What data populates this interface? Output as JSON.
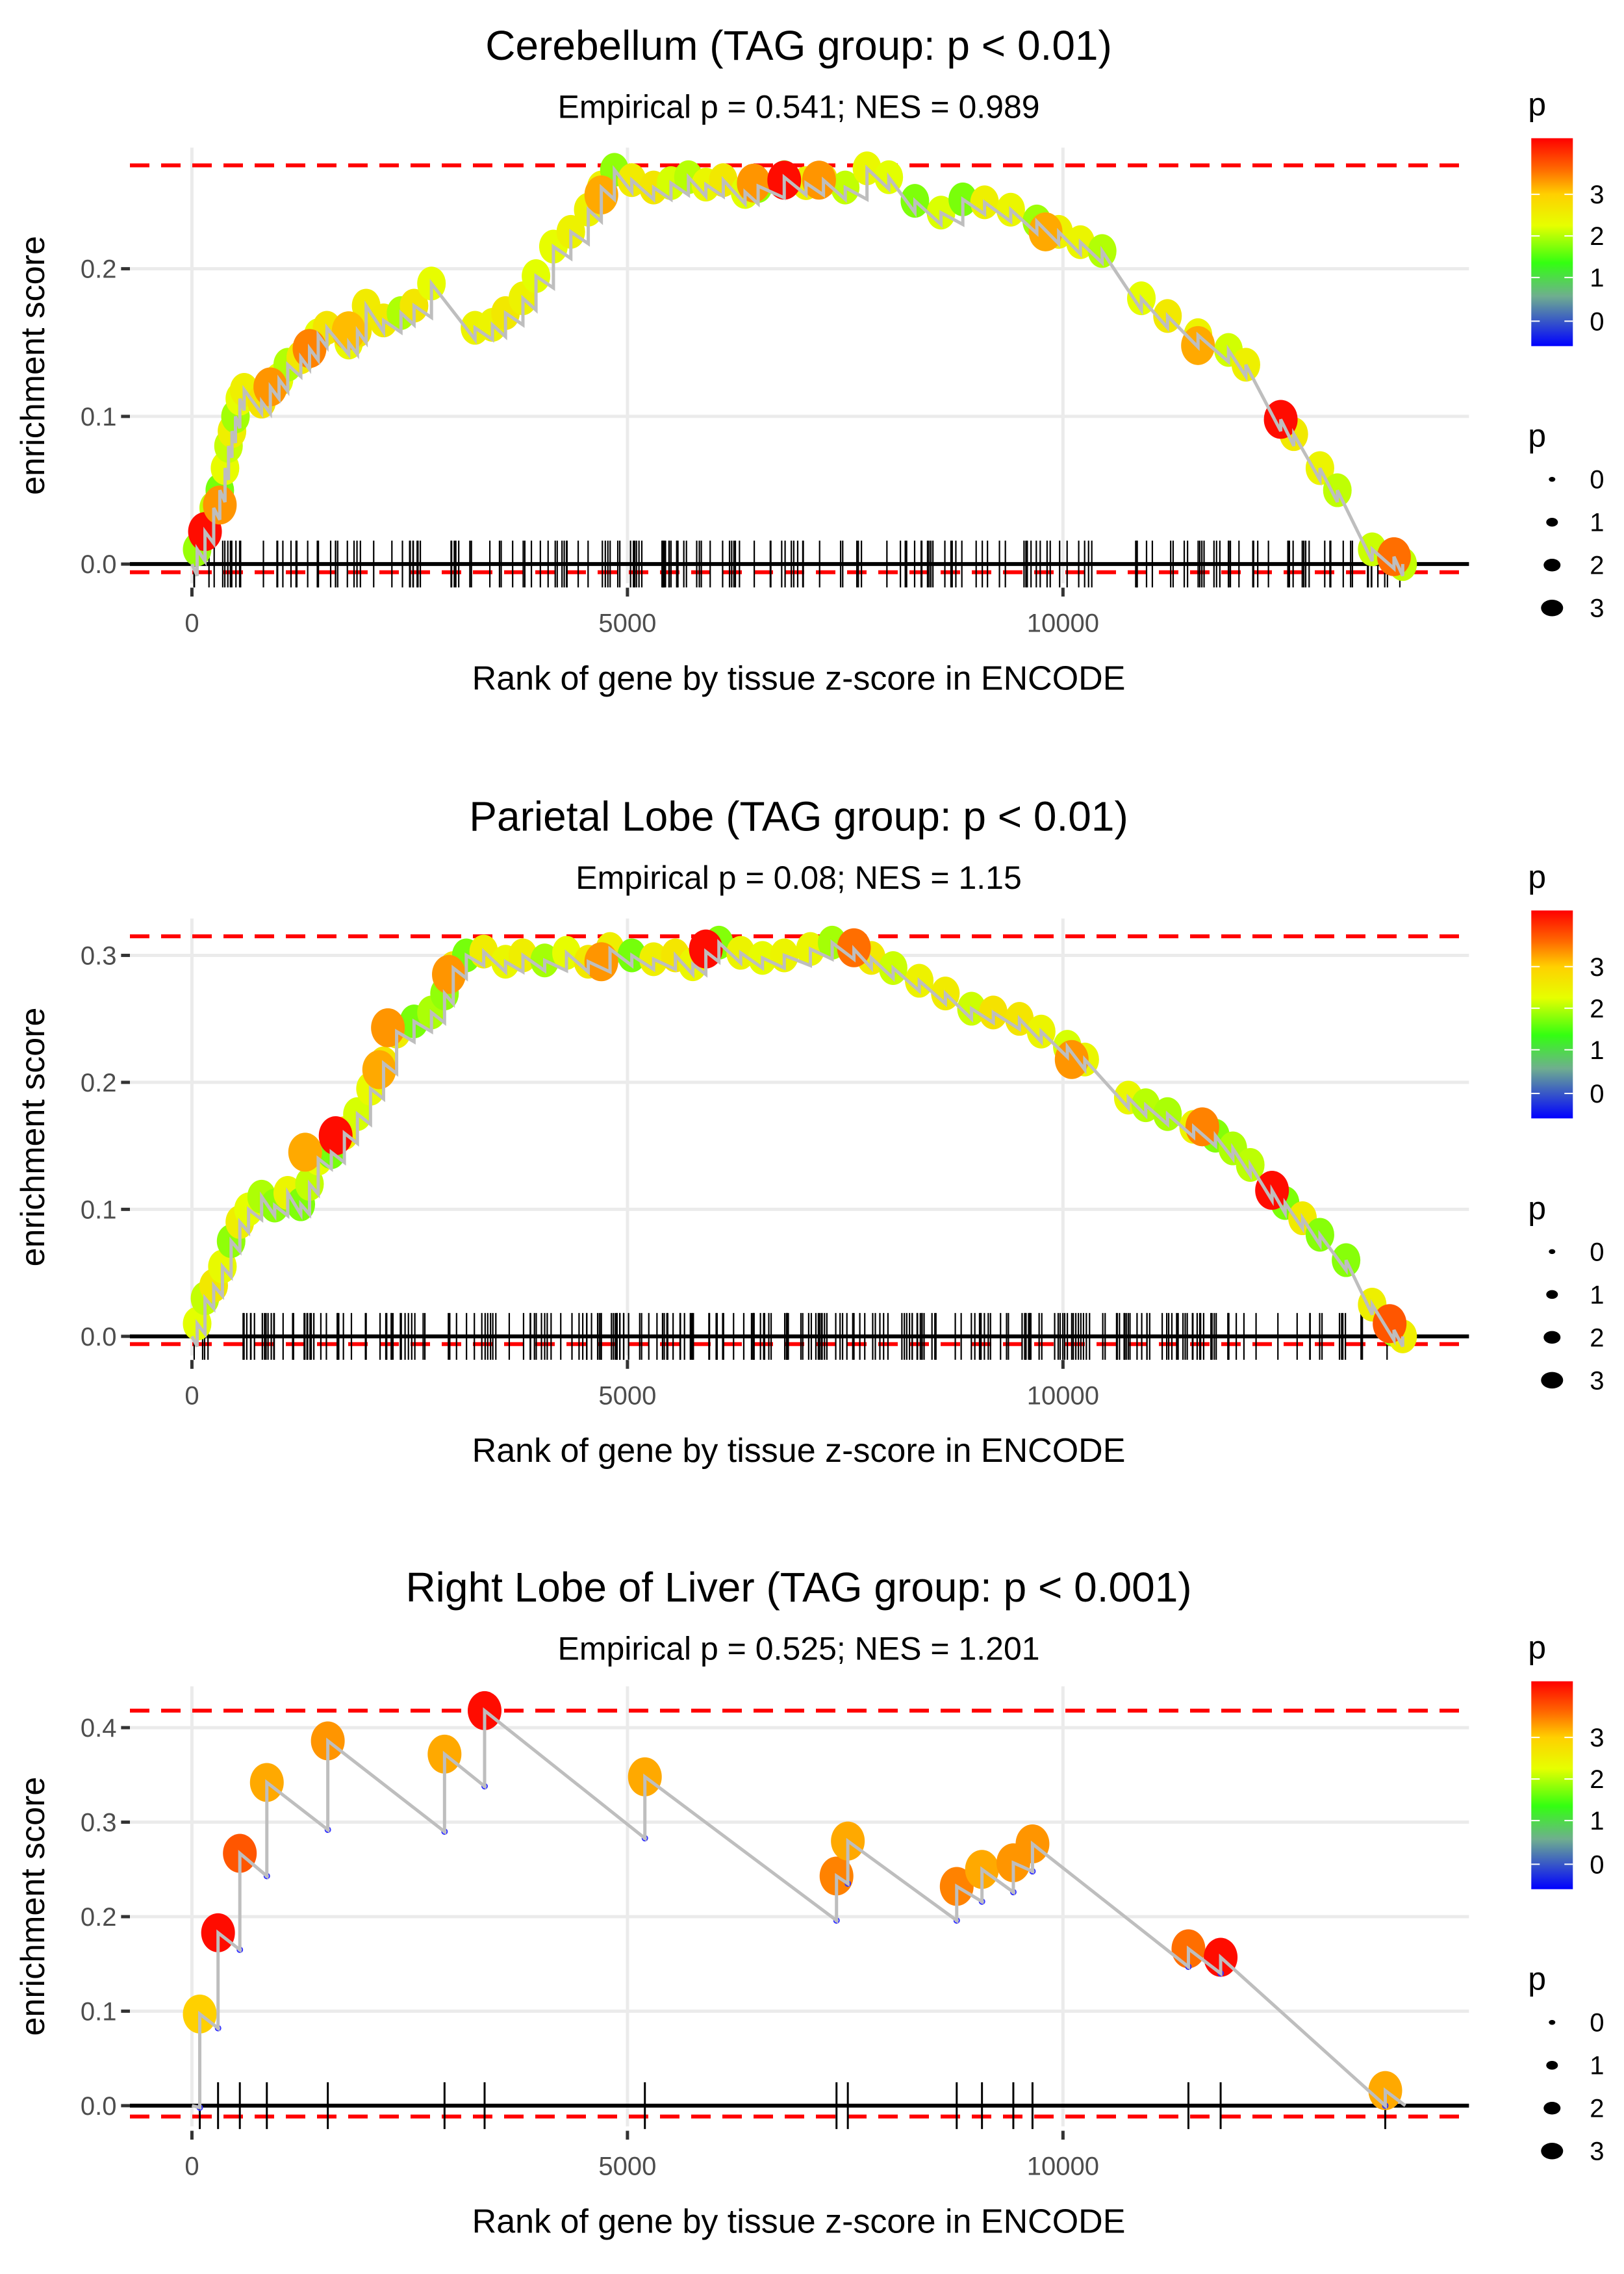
{
  "chart_data": [
    {
      "type": "line",
      "title": "Cerebellum (TAG group: p < 0.01)",
      "subtitle": "Empirical p = 0.541; NES = 0.989",
      "xlabel": "Rank of gene by tissue z-score in ENCODE",
      "ylabel": "enrichment score",
      "xlim": [
        -700,
        14800
      ],
      "ylim": [
        -0.005,
        0.28
      ],
      "x_ticks": [
        0,
        5000,
        10000
      ],
      "x_tick_labels": [
        "0",
        "5000",
        "10000"
      ],
      "y_ticks": [
        0.0,
        0.1,
        0.2
      ],
      "y_tick_labels": [
        "0.0",
        "0.1",
        "0.2"
      ],
      "max_es": 0.27,
      "min_es": -0.002,
      "grid": true,
      "series": [
        {
          "name": "running ES",
          "points": [
            [
              0,
              0.0
            ],
            [
              60,
              0.01
            ],
            [
              150,
              0.022
            ],
            [
              250,
              0.038
            ],
            [
              320,
              0.05
            ],
            [
              380,
              0.065
            ],
            [
              420,
              0.08
            ],
            [
              460,
              0.09
            ],
            [
              500,
              0.1
            ],
            [
              550,
              0.112
            ],
            [
              600,
              0.118
            ],
            [
              800,
              0.11
            ],
            [
              900,
              0.12
            ],
            [
              1000,
              0.125
            ],
            [
              1100,
              0.135
            ],
            [
              1250,
              0.14
            ],
            [
              1350,
              0.146
            ],
            [
              1450,
              0.155
            ],
            [
              1550,
              0.16
            ],
            [
              1800,
              0.15
            ],
            [
              1900,
              0.158
            ],
            [
              2000,
              0.175
            ],
            [
              2200,
              0.165
            ],
            [
              2400,
              0.17
            ],
            [
              2550,
              0.175
            ],
            [
              2750,
              0.19
            ],
            [
              3250,
              0.16
            ],
            [
              3450,
              0.162
            ],
            [
              3600,
              0.17
            ],
            [
              3800,
              0.18
            ],
            [
              3950,
              0.195
            ],
            [
              4150,
              0.215
            ],
            [
              4350,
              0.225
            ],
            [
              4550,
              0.24
            ],
            [
              4700,
              0.255
            ],
            [
              4850,
              0.267
            ],
            [
              5050,
              0.26
            ],
            [
              5300,
              0.255
            ],
            [
              5500,
              0.258
            ],
            [
              5700,
              0.262
            ],
            [
              5900,
              0.257
            ],
            [
              6100,
              0.26
            ],
            [
              6350,
              0.252
            ],
            [
              6500,
              0.256
            ],
            [
              6800,
              0.262
            ],
            [
              7050,
              0.258
            ],
            [
              7250,
              0.26
            ],
            [
              7500,
              0.255
            ],
            [
              7750,
              0.268
            ],
            [
              8000,
              0.262
            ],
            [
              8300,
              0.246
            ],
            [
              8600,
              0.238
            ],
            [
              8850,
              0.247
            ],
            [
              9100,
              0.245
            ],
            [
              9400,
              0.24
            ],
            [
              9700,
              0.232
            ],
            [
              9950,
              0.225
            ],
            [
              10200,
              0.218
            ],
            [
              10450,
              0.212
            ],
            [
              10900,
              0.18
            ],
            [
              11200,
              0.168
            ],
            [
              11550,
              0.155
            ],
            [
              11900,
              0.145
            ],
            [
              12100,
              0.135
            ],
            [
              12500,
              0.098
            ],
            [
              12650,
              0.088
            ],
            [
              12950,
              0.065
            ],
            [
              13150,
              0.05
            ],
            [
              13550,
              0.01
            ],
            [
              13800,
              0.005
            ],
            [
              13900,
              0.0
            ]
          ]
        }
      ],
      "highlight_points": [
        {
          "x": 150,
          "y": 0.022,
          "p": 3.9
        },
        {
          "x": 320,
          "y": 0.04,
          "p": 3.3
        },
        {
          "x": 900,
          "y": 0.12,
          "p": 3.3
        },
        {
          "x": 1350,
          "y": 0.146,
          "p": 3.4
        },
        {
          "x": 1800,
          "y": 0.158,
          "p": 3.1
        },
        {
          "x": 4700,
          "y": 0.25,
          "p": 3.2
        },
        {
          "x": 6450,
          "y": 0.258,
          "p": 3.3
        },
        {
          "x": 6800,
          "y": 0.26,
          "p": 3.9
        },
        {
          "x": 7200,
          "y": 0.26,
          "p": 3.3
        },
        {
          "x": 9800,
          "y": 0.225,
          "p": 3.2
        },
        {
          "x": 11550,
          "y": 0.148,
          "p": 3.2
        },
        {
          "x": 12500,
          "y": 0.098,
          "p": 3.9
        },
        {
          "x": 13800,
          "y": 0.005,
          "p": 3.5
        }
      ],
      "rug_density": 200
    },
    {
      "type": "line",
      "title": "Parietal Lobe (TAG group: p < 0.01)",
      "subtitle": "Empirical p = 0.08; NES = 1.15",
      "xlabel": "Rank of gene by tissue z-score in ENCODE",
      "ylabel": "enrichment score",
      "xlim": [
        -700,
        14800
      ],
      "ylim": [
        -0.005,
        0.32
      ],
      "x_ticks": [
        0,
        5000,
        10000
      ],
      "x_tick_labels": [
        "0",
        "5000",
        "10000"
      ],
      "y_ticks": [
        0.0,
        0.1,
        0.2,
        0.3
      ],
      "y_tick_labels": [
        "0.0",
        "0.1",
        "0.2",
        "0.3"
      ],
      "max_es": 0.315,
      "min_es": -0.002,
      "grid": true,
      "series": [
        {
          "name": "running ES",
          "points": [
            [
              0,
              0.0
            ],
            [
              60,
              0.01
            ],
            [
              150,
              0.03
            ],
            [
              250,
              0.04
            ],
            [
              350,
              0.055
            ],
            [
              450,
              0.075
            ],
            [
              550,
              0.09
            ],
            [
              650,
              0.1
            ],
            [
              800,
              0.11
            ],
            [
              950,
              0.103
            ],
            [
              1100,
              0.113
            ],
            [
              1250,
              0.104
            ],
            [
              1350,
              0.12
            ],
            [
              1450,
              0.14
            ],
            [
              1600,
              0.145
            ],
            [
              1750,
              0.16
            ],
            [
              1900,
              0.175
            ],
            [
              2050,
              0.195
            ],
            [
              2200,
              0.215
            ],
            [
              2350,
              0.24
            ],
            [
              2550,
              0.248
            ],
            [
              2750,
              0.255
            ],
            [
              2900,
              0.27
            ],
            [
              3000,
              0.29
            ],
            [
              3150,
              0.3
            ],
            [
              3350,
              0.303
            ],
            [
              3600,
              0.295
            ],
            [
              3800,
              0.3
            ],
            [
              4050,
              0.296
            ],
            [
              4300,
              0.302
            ],
            [
              4550,
              0.295
            ],
            [
              4800,
              0.305
            ],
            [
              5050,
              0.3
            ],
            [
              5300,
              0.297
            ],
            [
              5550,
              0.3
            ],
            [
              5750,
              0.293
            ],
            [
              5900,
              0.303
            ],
            [
              6050,
              0.31
            ],
            [
              6300,
              0.302
            ],
            [
              6550,
              0.298
            ],
            [
              6800,
              0.3
            ],
            [
              7100,
              0.305
            ],
            [
              7350,
              0.31
            ],
            [
              7600,
              0.305
            ],
            [
              7800,
              0.298
            ],
            [
              8050,
              0.29
            ],
            [
              8350,
              0.28
            ],
            [
              8650,
              0.27
            ],
            [
              8950,
              0.258
            ],
            [
              9200,
              0.255
            ],
            [
              9500,
              0.25
            ],
            [
              9750,
              0.24
            ],
            [
              10050,
              0.228
            ],
            [
              10250,
              0.218
            ],
            [
              10750,
              0.188
            ],
            [
              10950,
              0.182
            ],
            [
              11200,
              0.175
            ],
            [
              11500,
              0.165
            ],
            [
              11750,
              0.158
            ],
            [
              11950,
              0.148
            ],
            [
              12150,
              0.135
            ],
            [
              12400,
              0.115
            ],
            [
              12550,
              0.105
            ],
            [
              12750,
              0.093
            ],
            [
              12950,
              0.08
            ],
            [
              13250,
              0.06
            ],
            [
              13550,
              0.025
            ],
            [
              13800,
              0.005
            ],
            [
              13900,
              0.0
            ]
          ]
        }
      ],
      "highlight_points": [
        {
          "x": 1300,
          "y": 0.145,
          "p": 3.2
        },
        {
          "x": 1650,
          "y": 0.158,
          "p": 3.9
        },
        {
          "x": 2150,
          "y": 0.21,
          "p": 3.2
        },
        {
          "x": 2250,
          "y": 0.243,
          "p": 3.3
        },
        {
          "x": 2950,
          "y": 0.285,
          "p": 3.3
        },
        {
          "x": 4700,
          "y": 0.295,
          "p": 3.3
        },
        {
          "x": 5900,
          "y": 0.305,
          "p": 3.9
        },
        {
          "x": 7600,
          "y": 0.306,
          "p": 3.5
        },
        {
          "x": 10100,
          "y": 0.218,
          "p": 3.3
        },
        {
          "x": 11600,
          "y": 0.165,
          "p": 3.4
        },
        {
          "x": 12400,
          "y": 0.115,
          "p": 3.9
        },
        {
          "x": 13750,
          "y": 0.01,
          "p": 3.6
        }
      ],
      "rug_density": 260
    },
    {
      "type": "line",
      "title": "Right Lobe of Liver (TAG group: p < 0.001)",
      "subtitle": "Empirical p = 0.525; NES = 1.201",
      "xlabel": "Rank of gene by tissue z-score in ENCODE",
      "ylabel": "enrichment score",
      "xlim": [
        -700,
        14800
      ],
      "ylim": [
        -0.01,
        0.43
      ],
      "x_ticks": [
        0,
        5000,
        10000
      ],
      "x_tick_labels": [
        "0",
        "5000",
        "10000"
      ],
      "y_ticks": [
        0.0,
        0.1,
        0.2,
        0.3,
        0.4
      ],
      "y_tick_labels": [
        "0.0",
        "0.1",
        "0.2",
        "0.3",
        "0.4"
      ],
      "max_es": 0.418,
      "min_es": -0.006,
      "grid": true,
      "hits": [
        {
          "x": 90,
          "low": -0.002,
          "high": 0.097,
          "p": 3.0
        },
        {
          "x": 300,
          "low": 0.082,
          "high": 0.183,
          "p": 3.9
        },
        {
          "x": 550,
          "low": 0.165,
          "high": 0.267,
          "p": 3.6
        },
        {
          "x": 860,
          "low": 0.243,
          "high": 0.342,
          "p": 3.2
        },
        {
          "x": 1560,
          "low": 0.292,
          "high": 0.386,
          "p": 3.3
        },
        {
          "x": 2900,
          "low": 0.29,
          "high": 0.372,
          "p": 3.2
        },
        {
          "x": 3360,
          "low": 0.338,
          "high": 0.418,
          "p": 3.9
        },
        {
          "x": 5200,
          "low": 0.283,
          "high": 0.348,
          "p": 3.2
        },
        {
          "x": 7400,
          "low": 0.196,
          "high": 0.243,
          "p": 3.4
        },
        {
          "x": 7530,
          "low": 0.235,
          "high": 0.28,
          "p": 3.2
        },
        {
          "x": 8780,
          "low": 0.196,
          "high": 0.232,
          "p": 3.4
        },
        {
          "x": 9070,
          "low": 0.216,
          "high": 0.25,
          "p": 3.2
        },
        {
          "x": 9430,
          "low": 0.226,
          "high": 0.257,
          "p": 3.3
        },
        {
          "x": 9650,
          "low": 0.248,
          "high": 0.277,
          "p": 3.3
        },
        {
          "x": 11440,
          "low": 0.147,
          "high": 0.166,
          "p": 3.5
        },
        {
          "x": 11810,
          "low": 0.14,
          "high": 0.157,
          "p": 3.9
        },
        {
          "x": 13700,
          "low": 0.0,
          "high": 0.016,
          "p": 3.2
        }
      ],
      "end_x": 13930
    }
  ],
  "legends": {
    "color_title": "p",
    "color_labels": [
      "3",
      "2",
      "1",
      "0"
    ],
    "size_title": "p",
    "size_labels": [
      "0",
      "1",
      "2",
      "3"
    ],
    "colors": [
      "#ff0000",
      "#ff7f00",
      "#ffd700",
      "#e0ff00",
      "#33ff00",
      "#7f9f9f",
      "#0000ff"
    ]
  }
}
